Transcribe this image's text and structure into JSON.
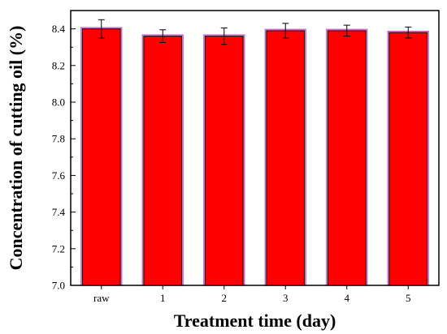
{
  "chart_data": {
    "type": "bar",
    "categories": [
      "raw",
      "1",
      "2",
      "3",
      "4",
      "5"
    ],
    "values": [
      8.4,
      8.36,
      8.36,
      8.39,
      8.39,
      8.38
    ],
    "errors": [
      0.05,
      0.035,
      0.045,
      0.04,
      0.03,
      0.03
    ],
    "xlabel": "Treatment time (day)",
    "ylabel": "Concentration of cutting oil (%)",
    "ylim": [
      7.0,
      8.5
    ],
    "yticks": [
      7.0,
      7.2,
      7.4,
      7.6,
      7.8,
      8.0,
      8.2,
      8.4
    ],
    "ytick_labels": [
      "7.0",
      "7.2",
      "7.4",
      "7.6",
      "7.8",
      "8.0",
      "8.2",
      "8.4"
    ],
    "grid": false,
    "colors": {
      "bar": "#ff0000",
      "bar_edge": "#000000",
      "bar_outline": "#cc66cc"
    }
  }
}
